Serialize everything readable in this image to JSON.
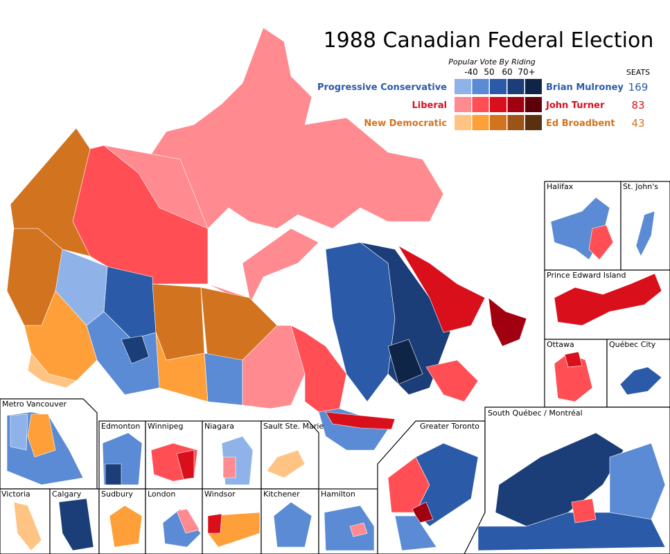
{
  "title": "1988 Canadian Federal Election",
  "legend": {
    "subtitle": "Popular Vote By Riding",
    "scale_labels": [
      "-40",
      "50",
      "60",
      "70+"
    ],
    "seats_header": "SEATS",
    "parties": [
      {
        "name": "Progressive Conservative",
        "leader": "Brian Mulroney",
        "seats": 169,
        "color": "#2a5aa8",
        "shades": [
          "#8fb3e8",
          "#5b8bd4",
          "#2a5aa8",
          "#1b3d78",
          "#0f2548"
        ]
      },
      {
        "name": "Liberal",
        "leader": "John Turner",
        "seats": 83,
        "color": "#d90f1c",
        "shades": [
          "#ff8a8f",
          "#ff4f55",
          "#d90f1c",
          "#a00010",
          "#5e0008"
        ]
      },
      {
        "name": "New Democratic",
        "leader": "Ed Broadbent",
        "seats": 43,
        "color": "#d2731f",
        "shades": [
          "#ffc483",
          "#ff9f3a",
          "#d2731f",
          "#9c5318",
          "#5a3010"
        ]
      }
    ]
  },
  "insets": [
    "Halifax",
    "St. John's",
    "Prince Edward Island",
    "Ottawa",
    "Québec City",
    "Metro Vancouver",
    "Edmonton",
    "Winnipeg",
    "Niagara",
    "Sault Ste. Marie",
    "Victoria",
    "Calgary",
    "Sudbury",
    "London",
    "Windsor",
    "Kitchener",
    "Hamilton",
    "Greater Toronto",
    "South Québec / Montréal"
  ]
}
